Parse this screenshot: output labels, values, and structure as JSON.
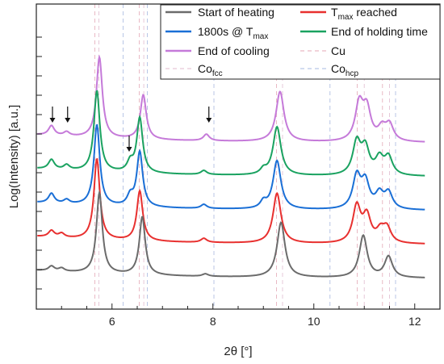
{
  "chart_data": {
    "type": "line",
    "xlabel": "2θ [°]",
    "ylabel": "Log(Intensity) [a.u.]",
    "xlim": [
      4.5,
      12.5
    ],
    "xticks": [
      6,
      8,
      10,
      12
    ],
    "xtick_labels": [
      "6",
      "8",
      "10",
      "12"
    ],
    "y_scale": "log (offset stacked traces)",
    "yticks_labeled": false,
    "grid": false,
    "legend_position": "top-right",
    "legend": [
      {
        "key": "start",
        "label": "Start of heating",
        "color": "#6b6b6b",
        "style": "solid"
      },
      {
        "key": "tmax",
        "label_prefix": "T",
        "label_sub": "max",
        "label_suffix": " reached",
        "color": "#e8302f",
        "style": "solid"
      },
      {
        "key": "hold1800",
        "label_prefix": "1800s @ T",
        "label_sub": "max",
        "label_suffix": "",
        "color": "#1a6fd6",
        "style": "solid"
      },
      {
        "key": "endhold",
        "label": "End of holding time",
        "color": "#1aa260",
        "style": "solid"
      },
      {
        "key": "endcool",
        "label": "End of cooling",
        "color": "#c57ad9",
        "style": "solid"
      },
      {
        "key": "cu",
        "label": "Cu",
        "color": "#e9b9c4",
        "style": "dashed"
      },
      {
        "key": "cofcc",
        "label_prefix": "Co",
        "label_sub": "fcc",
        "label_suffix": "",
        "color": "#e6c8d8",
        "style": "dashed"
      },
      {
        "key": "cohcp",
        "label_prefix": "Co",
        "label_sub": "hcp",
        "label_suffix": "",
        "color": "#b8c6e6",
        "style": "dashed"
      }
    ],
    "reference_lines": {
      "cu": [
        5.66,
        6.54,
        9.26,
        10.86,
        11.36
      ],
      "cofcc": [
        5.74,
        6.63,
        9.38,
        11.0,
        11.5
      ],
      "cohcp": [
        6.22,
        6.7,
        8.02,
        10.32,
        11.62
      ]
    },
    "series": [
      {
        "key": "start",
        "color": "#6b6b6b",
        "offset_index": 0,
        "peaks": [
          [
            4.8,
            0.06
          ],
          [
            5.0,
            0.04
          ],
          [
            5.75,
            1.0
          ],
          [
            6.6,
            0.72
          ],
          [
            7.85,
            0.03
          ],
          [
            9.35,
            0.68
          ],
          [
            10.98,
            0.52
          ],
          [
            11.48,
            0.26
          ]
        ]
      },
      {
        "key": "tmax",
        "color": "#e8302f",
        "offset_index": 1,
        "peaks": [
          [
            4.8,
            0.08
          ],
          [
            5.0,
            0.05
          ],
          [
            5.7,
            1.0
          ],
          [
            6.55,
            0.62
          ],
          [
            7.82,
            0.05
          ],
          [
            9.27,
            0.62
          ],
          [
            10.85,
            0.45
          ],
          [
            11.05,
            0.32
          ],
          [
            11.32,
            0.14
          ],
          [
            11.45,
            0.18
          ]
        ]
      },
      {
        "key": "hold1800",
        "color": "#1a6fd6",
        "offset_index": 2,
        "peaks": [
          [
            4.8,
            0.12
          ],
          [
            5.1,
            0.05
          ],
          [
            5.7,
            1.0
          ],
          [
            6.36,
            0.12
          ],
          [
            6.55,
            0.68
          ],
          [
            7.82,
            0.05
          ],
          [
            9.0,
            0.08
          ],
          [
            9.27,
            0.6
          ],
          [
            10.85,
            0.4
          ],
          [
            11.02,
            0.32
          ],
          [
            11.3,
            0.18
          ],
          [
            11.48,
            0.2
          ]
        ]
      },
      {
        "key": "endhold",
        "color": "#1aa260",
        "offset_index": 3,
        "peaks": [
          [
            4.8,
            0.12
          ],
          [
            5.1,
            0.06
          ],
          [
            5.7,
            1.0
          ],
          [
            6.36,
            0.12
          ],
          [
            6.55,
            0.68
          ],
          [
            7.82,
            0.05
          ],
          [
            9.0,
            0.06
          ],
          [
            9.27,
            0.6
          ],
          [
            10.85,
            0.4
          ],
          [
            11.02,
            0.32
          ],
          [
            11.3,
            0.2
          ],
          [
            11.48,
            0.22
          ]
        ]
      },
      {
        "key": "endcool",
        "color": "#c57ad9",
        "offset_index": 4,
        "peaks": [
          [
            4.8,
            0.12
          ],
          [
            5.1,
            0.05
          ],
          [
            5.75,
            1.0
          ],
          [
            6.62,
            0.55
          ],
          [
            7.87,
            0.08
          ],
          [
            9.33,
            0.62
          ],
          [
            10.9,
            0.45
          ],
          [
            11.05,
            0.38
          ],
          [
            11.35,
            0.15
          ],
          [
            11.5,
            0.2
          ]
        ]
      }
    ],
    "arrows_at_x": [
      4.82,
      5.12,
      6.34,
      7.92
    ]
  }
}
